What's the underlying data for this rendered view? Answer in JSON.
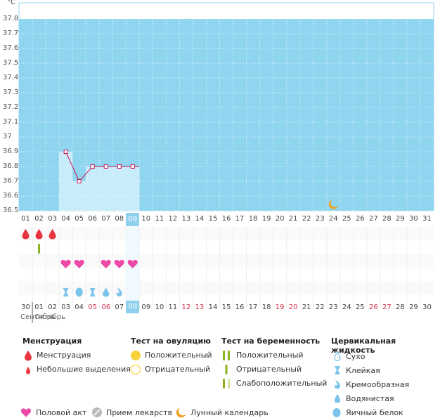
{
  "chart_data": {
    "type": "line",
    "unit_label": "°C",
    "ylim": [
      36.5,
      37.8
    ],
    "y_ticks": [
      "37.8",
      "37.7",
      "37.6",
      "37.5",
      "37.4",
      "37.3",
      "37.2",
      "37.1",
      "37",
      "36.9",
      "36.8",
      "36.7",
      "36.6",
      "36.5"
    ],
    "x_top": [
      "01",
      "02",
      "03",
      "04",
      "05",
      "06",
      "07",
      "08",
      "09",
      "10",
      "11",
      "12",
      "13",
      "14",
      "15",
      "16",
      "17",
      "18",
      "19",
      "20",
      "21",
      "22",
      "23",
      "24",
      "25",
      "26",
      "27",
      "28",
      "29",
      "30",
      "31"
    ],
    "selected_day_top": "09",
    "series": [
      {
        "points": [
          {
            "x": "04",
            "y": 36.9
          },
          {
            "x": "05",
            "y": 36.7
          },
          {
            "x": "06",
            "y": 36.8
          },
          {
            "x": "07",
            "y": 36.8
          },
          {
            "x": "08",
            "y": 36.8
          },
          {
            "x": "09",
            "y": 36.8
          }
        ]
      }
    ],
    "grid": true,
    "moon_day": "24",
    "colors": {
      "background": "#8fd5f0",
      "recorded": "#c9ecfb",
      "line": "#c4164f"
    }
  },
  "bottom_days": [
    {
      "d": "30",
      "red": false
    },
    {
      "d": "01",
      "red": false
    },
    {
      "d": "02",
      "red": false
    },
    {
      "d": "03",
      "red": false
    },
    {
      "d": "04",
      "red": false
    },
    {
      "d": "05",
      "red": true
    },
    {
      "d": "06",
      "red": true
    },
    {
      "d": "07",
      "red": false
    },
    {
      "d": "08",
      "red": false,
      "sel": true
    },
    {
      "d": "09",
      "red": false
    },
    {
      "d": "10",
      "red": false
    },
    {
      "d": "11",
      "red": false
    },
    {
      "d": "12",
      "red": true
    },
    {
      "d": "13",
      "red": true
    },
    {
      "d": "14",
      "red": false
    },
    {
      "d": "15",
      "red": false
    },
    {
      "d": "16",
      "red": false
    },
    {
      "d": "17",
      "red": false
    },
    {
      "d": "18",
      "red": false
    },
    {
      "d": "19",
      "red": true
    },
    {
      "d": "20",
      "red": true
    },
    {
      "d": "21",
      "red": false
    },
    {
      "d": "22",
      "red": false
    },
    {
      "d": "23",
      "red": false
    },
    {
      "d": "24",
      "red": false
    },
    {
      "d": "25",
      "red": false
    },
    {
      "d": "26",
      "red": true
    },
    {
      "d": "27",
      "red": true
    },
    {
      "d": "28",
      "red": false
    },
    {
      "d": "29",
      "red": false
    },
    {
      "d": "30",
      "red": false
    }
  ],
  "month_labels": {
    "previous": "Сентябрь",
    "current": "Октябрь"
  },
  "markers": {
    "menstruation_days": [
      "01",
      "02",
      "03"
    ],
    "pregnancy_test_days": [
      "02"
    ],
    "intercourse_days": [
      "04",
      "05",
      "07",
      "08",
      "09"
    ],
    "cervical_fluid": [
      {
        "day": "04",
        "type": "sticky"
      },
      {
        "day": "05",
        "type": "egg-white"
      },
      {
        "day": "06",
        "type": "sticky"
      },
      {
        "day": "07",
        "type": "watery"
      },
      {
        "day": "08",
        "type": "creamy"
      }
    ]
  },
  "legend": {
    "menstruation": {
      "title": "Менструация",
      "items": [
        "Менструация",
        "Небольшие выделения"
      ]
    },
    "ovulation": {
      "title": "Тест на овуляцию",
      "items": [
        "Положительный",
        "Отрицательный"
      ]
    },
    "pregnancy": {
      "title": "Тест на беременность",
      "items": [
        "Положительный",
        "Отрицательный",
        "Слабоположительный"
      ]
    },
    "cervical": {
      "title": "Цервикальная жидкость",
      "items": [
        "Сухо",
        "Клейкая",
        "Кремообразная",
        "Водянистая",
        "Яичный белок"
      ]
    },
    "other": [
      "Половой акт",
      "Прием лекарств",
      "Лунный календарь"
    ]
  },
  "colors": {
    "red_drop": "#e8353f",
    "heart": "#ec4aa6",
    "green_bar": "#8bb321",
    "yellow": "#f5d23a",
    "blue_drop": "#7cc4ea",
    "moon": "#f0a020",
    "pill": "#b8b8b8"
  }
}
